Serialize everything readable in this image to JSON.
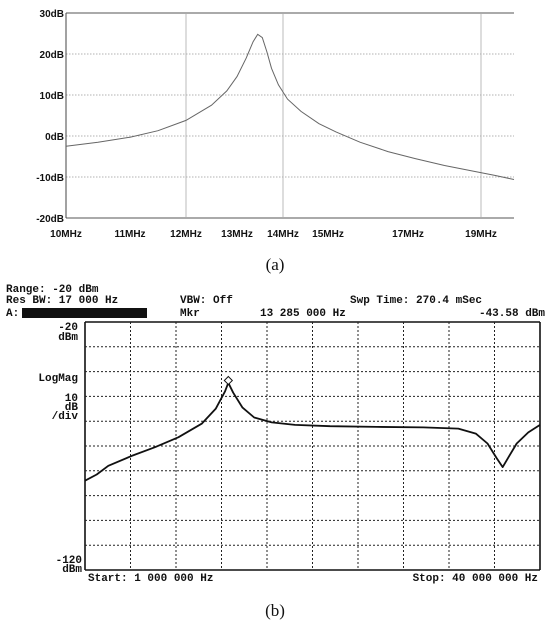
{
  "chart_data": [
    {
      "type": "line",
      "panel_label": "(a)",
      "xlabel": "",
      "ylabel": "",
      "x_ticks": [
        {
          "value": 10,
          "label": "10MHz"
        },
        {
          "value": 11,
          "label": "11MHz"
        },
        {
          "value": 12,
          "label": "12MHz"
        },
        {
          "value": 13,
          "label": "13MHz"
        },
        {
          "value": 14,
          "label": "14MHz"
        },
        {
          "value": 15,
          "label": "15MHz"
        },
        {
          "value": 17,
          "label": "17MHz"
        },
        {
          "value": 19,
          "label": "19MHz"
        }
      ],
      "y_ticks": [
        {
          "value": 30,
          "label": "30dB"
        },
        {
          "value": 20,
          "label": "20dB"
        },
        {
          "value": 10,
          "label": "10dB"
        },
        {
          "value": 0,
          "label": "0dB"
        },
        {
          "value": -10,
          "label": "-10dB"
        },
        {
          "value": -20,
          "label": "-20dB"
        }
      ],
      "ylim": [
        -20,
        30
      ],
      "grid": true,
      "series": [
        {
          "x": [
            10.0,
            10.5,
            11.0,
            11.5,
            12.0,
            12.5,
            12.8,
            13.0,
            13.2,
            13.35,
            13.45,
            13.55,
            13.65,
            13.75,
            13.9,
            14.1,
            14.4,
            14.8,
            15.2,
            15.8,
            16.5,
            17.2,
            18.0,
            18.8,
            19.5,
            20.2
          ],
          "y": [
            -2.5,
            -1.5,
            -0.3,
            1.3,
            3.8,
            7.5,
            11.0,
            14.5,
            19.0,
            23.0,
            24.8,
            24.0,
            20.5,
            16.5,
            12.5,
            9.0,
            6.0,
            3.0,
            1.0,
            -1.5,
            -3.8,
            -5.5,
            -7.2,
            -8.6,
            -9.6,
            -10.6
          ]
        }
      ]
    },
    {
      "type": "line",
      "panel_label": "(b)",
      "header": {
        "range": "Range: -20 dBm",
        "res_bw": "Res BW: 17 000 Hz",
        "vbw": "VBW:  Off",
        "swp_time": "Swp Time:  270.4 mSec",
        "trace": "A:",
        "mkr_label": "Mkr",
        "mkr_freq": "13 285 000 Hz",
        "mkr_level": "-43.58 dBm"
      },
      "y_top_value": "-20",
      "y_top_unit": "dBm",
      "scale_mode": "LogMag",
      "scale_value": "10",
      "scale_unit": "dB",
      "scale_div": "/div",
      "y_bottom_value": "-120",
      "y_bottom_unit": "dBm",
      "start_label": "Start:  1 000 000 Hz",
      "stop_label": "Stop:  40 000 000 Hz",
      "xlim": [
        1,
        40
      ],
      "ylim": [
        -120,
        -20
      ],
      "grid": true,
      "marker": {
        "x": 13.285,
        "y": -43.58
      },
      "series": [
        {
          "x": [
            1.0,
            2.0,
            3.0,
            5.0,
            7.0,
            9.0,
            11.0,
            12.2,
            13.0,
            13.285,
            13.7,
            14.5,
            15.5,
            17.0,
            19.0,
            22.0,
            26.0,
            30.0,
            33.0,
            34.5,
            35.5,
            36.3,
            36.8,
            37.3,
            38.0,
            39.0,
            40.0
          ],
          "y": [
            -84.0,
            -81.5,
            -78.0,
            -74.0,
            -70.5,
            -66.5,
            -61.0,
            -55.0,
            -48.0,
            -44.5,
            -48.5,
            -54.5,
            -58.5,
            -60.5,
            -61.5,
            -62.0,
            -62.3,
            -62.5,
            -63.0,
            -65.0,
            -69.0,
            -75.0,
            -78.5,
            -74.5,
            -69.0,
            -64.5,
            -61.5
          ]
        }
      ]
    }
  ]
}
